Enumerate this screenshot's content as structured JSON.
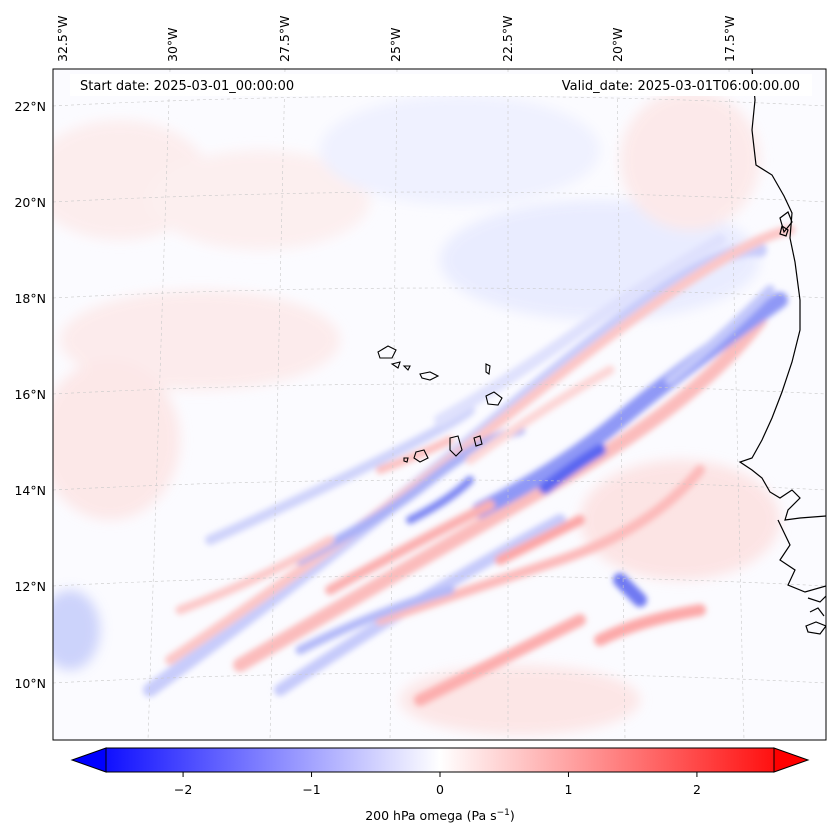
{
  "header": {
    "start_date": "Start date: 2025-03-01_00:00:00",
    "valid_date": "Valid_date: 2025-03-01T06:00:00.00"
  },
  "lon_labels": [
    "32.5°W",
    "30°W",
    "27.5°W",
    "25°W",
    "22.5°W",
    "20°W",
    "17.5°W"
  ],
  "lat_labels": [
    "22°N",
    "20°N",
    "18°N",
    "16°N",
    "14°N",
    "12°N",
    "10°N"
  ],
  "colorbar": {
    "label_prefix": "200 hPa omega (Pa s",
    "label_exp": "−1",
    "label_suffix": ")",
    "ticks": [
      "−2",
      "−1",
      "0",
      "1",
      "2"
    ],
    "min": -2.6,
    "max": 2.6,
    "low_color": "#0000ff",
    "mid_color": "#ffffff",
    "high_color": "#ff0000"
  }
}
